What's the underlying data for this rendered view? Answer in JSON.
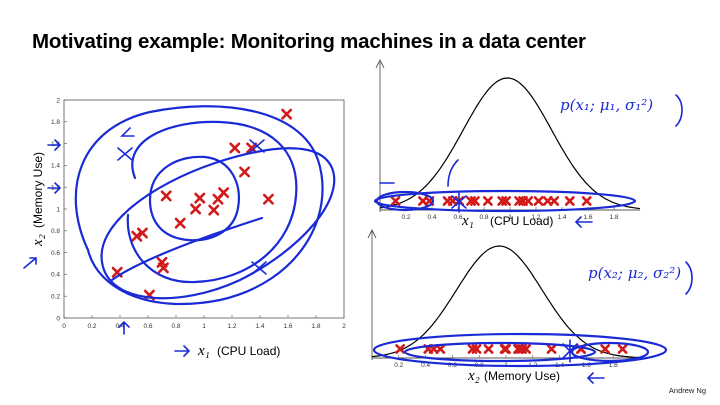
{
  "slide": {
    "title": "Motivating example: Monitoring machines in a data center",
    "credit": "Andrew Ng"
  },
  "colors": {
    "data_marker": "#d21a1a",
    "annotation_ink": "#1a2bd6",
    "axis": "#444444"
  },
  "annotations": {
    "p_x1": "p(x₁; μ₁, σ₁²)",
    "p_x2": "p(x₂; μ₂, σ₂²)"
  },
  "chart_data": [
    {
      "type": "scatter",
      "xlabel_symbol": "x₁",
      "xlabel": "(CPU Load)",
      "ylabel_symbol": "x₂",
      "ylabel": "(Memory Use)",
      "xlim": [
        0,
        2
      ],
      "ylim": [
        0,
        2
      ],
      "xticks": [
        0,
        0.2,
        0.4,
        0.6,
        0.8,
        1,
        1.2,
        1.4,
        1.6,
        1.8,
        2
      ],
      "yticks": [
        0,
        0.2,
        0.4,
        0.6,
        0.8,
        1,
        1.2,
        1.4,
        1.6,
        1.8,
        2
      ],
      "grid": false,
      "points": [
        {
          "x": 0.38,
          "y": 0.42
        },
        {
          "x": 0.52,
          "y": 0.75
        },
        {
          "x": 0.56,
          "y": 0.78
        },
        {
          "x": 0.61,
          "y": 0.21
        },
        {
          "x": 0.7,
          "y": 0.51
        },
        {
          "x": 0.71,
          "y": 0.46
        },
        {
          "x": 0.73,
          "y": 1.12
        },
        {
          "x": 0.83,
          "y": 0.87
        },
        {
          "x": 0.94,
          "y": 1.0
        },
        {
          "x": 0.97,
          "y": 1.1
        },
        {
          "x": 1.07,
          "y": 0.99
        },
        {
          "x": 1.1,
          "y": 1.09
        },
        {
          "x": 1.14,
          "y": 1.15
        },
        {
          "x": 1.22,
          "y": 1.56
        },
        {
          "x": 1.29,
          "y": 1.34
        },
        {
          "x": 1.34,
          "y": 1.56
        },
        {
          "x": 1.46,
          "y": 1.09
        },
        {
          "x": 1.59,
          "y": 1.87
        }
      ]
    },
    {
      "type": "line",
      "xlabel_symbol": "x₁",
      "xlabel": "(CPU Load)",
      "xlim": [
        0,
        2
      ],
      "xticks": [
        0.2,
        0.4,
        0.6,
        0.8,
        1,
        1.2,
        1.4,
        1.6,
        1.8
      ],
      "series": [
        {
          "kind": "gaussian_density",
          "mean": 0.98,
          "std": 0.34
        },
        {
          "kind": "rug",
          "values": [
            0.12,
            0.33,
            0.38,
            0.52,
            0.56,
            0.61,
            0.7,
            0.73,
            0.83,
            0.94,
            0.97,
            1.07,
            1.1,
            1.14,
            1.22,
            1.29,
            1.34,
            1.46,
            1.59
          ]
        }
      ]
    },
    {
      "type": "line",
      "xlabel_symbol": "x₂",
      "xlabel": "(Memory Use)",
      "xlim": [
        0,
        2
      ],
      "xticks": [
        0.2,
        0.4,
        0.6,
        0.8,
        1,
        1.2,
        1.4,
        1.6,
        1.8
      ],
      "series": [
        {
          "kind": "gaussian_density",
          "mean": 0.95,
          "std": 0.32
        },
        {
          "kind": "rug",
          "values": [
            0.21,
            0.42,
            0.46,
            0.51,
            0.75,
            0.78,
            0.87,
            0.99,
            1.0,
            1.09,
            1.1,
            1.12,
            1.15,
            1.34,
            1.56,
            1.56,
            1.74,
            1.87
          ]
        }
      ]
    }
  ]
}
